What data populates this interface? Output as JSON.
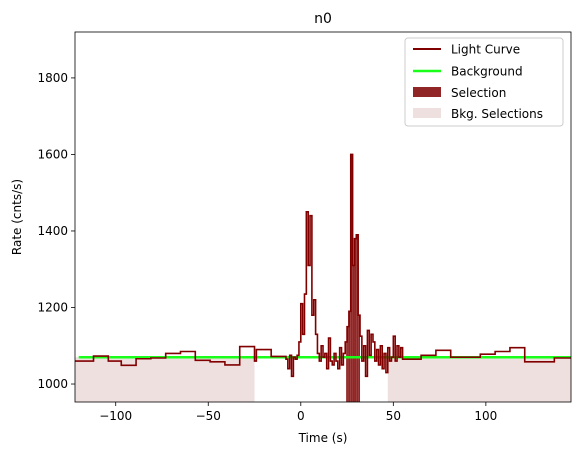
{
  "chart_data": {
    "type": "line",
    "title": "n0",
    "xlabel": "Time (s)",
    "ylabel": "Rate (cnts/s)",
    "xlim": [
      -122,
      146
    ],
    "ylim": [
      953,
      1920
    ],
    "xticks": [
      -100,
      -50,
      0,
      50,
      100
    ],
    "xtick_labels": [
      "−100",
      "−50",
      "0",
      "50",
      "100"
    ],
    "yticks": [
      1000,
      1200,
      1400,
      1600,
      1800
    ],
    "ytick_labels": [
      "1000",
      "1200",
      "1400",
      "1600",
      "1800"
    ],
    "grid": false,
    "legend_position": "top-right",
    "legend": [
      "Light Curve",
      "Background",
      "Selection",
      "Bkg. Selections"
    ],
    "colors": {
      "light_curve": "#800000",
      "background": "#1aff1a",
      "selection": "#8b1a1a",
      "bkg_selection": "#efe0e0"
    },
    "background_level": [
      [
        -120,
        1070
      ],
      [
        146,
        1070
      ]
    ],
    "selection_range": [
      24.5,
      32
    ],
    "bkg_selection_ranges": [
      [
        -122,
        -25
      ],
      [
        47,
        146
      ]
    ],
    "light_curve": [
      [
        -122,
        1060
      ],
      [
        -112,
        1073
      ],
      [
        -104,
        1060
      ],
      [
        -97,
        1049
      ],
      [
        -89,
        1066
      ],
      [
        -81,
        1068
      ],
      [
        -73,
        1080
      ],
      [
        -65,
        1085
      ],
      [
        -57,
        1062
      ],
      [
        -49,
        1058
      ],
      [
        -41,
        1050
      ],
      [
        -33,
        1098
      ],
      [
        -25,
        1060
      ],
      [
        -24,
        1090
      ],
      [
        -16,
        1072
      ],
      [
        -8,
        1065
      ],
      [
        -7,
        1040
      ],
      [
        -6,
        1075
      ],
      [
        -5,
        1020
      ],
      [
        -4,
        1070
      ],
      [
        -3,
        1065
      ],
      [
        -2,
        1075
      ],
      [
        -1,
        1110
      ],
      [
        0,
        1210
      ],
      [
        1,
        1130
      ],
      [
        2,
        1235
      ],
      [
        3,
        1450
      ],
      [
        4,
        1310
      ],
      [
        5,
        1440
      ],
      [
        6,
        1180
      ],
      [
        7,
        1220
      ],
      [
        8,
        1130
      ],
      [
        9,
        1080
      ],
      [
        10,
        1060
      ],
      [
        11,
        1100
      ],
      [
        12,
        1070
      ],
      [
        13,
        1080
      ],
      [
        14,
        1040
      ],
      [
        15,
        1120
      ],
      [
        16,
        1060
      ],
      [
        17,
        1050
      ],
      [
        18,
        1080
      ],
      [
        19,
        1060
      ],
      [
        20,
        1040
      ],
      [
        21,
        1095
      ],
      [
        22,
        1050
      ],
      [
        23,
        1080
      ],
      [
        24,
        1110
      ],
      [
        25,
        1150
      ],
      [
        26,
        1190
      ],
      [
        27,
        1600
      ],
      [
        28,
        1310
      ],
      [
        29,
        1380
      ],
      [
        30,
        1390
      ],
      [
        31,
        1180
      ],
      [
        32,
        1125
      ],
      [
        33,
        1060
      ],
      [
        34,
        1100
      ],
      [
        35,
        1020
      ],
      [
        36,
        1140
      ],
      [
        37,
        1075
      ],
      [
        38,
        1130
      ],
      [
        39,
        1110
      ],
      [
        40,
        1060
      ],
      [
        41,
        1090
      ],
      [
        42,
        1050
      ],
      [
        43,
        1100
      ],
      [
        44,
        1040
      ],
      [
        45,
        1080
      ],
      [
        46,
        1030
      ],
      [
        47,
        1095
      ],
      [
        48,
        1060
      ],
      [
        49,
        1070
      ],
      [
        50,
        1125
      ],
      [
        51,
        1060
      ],
      [
        52,
        1100
      ],
      [
        53,
        1070
      ],
      [
        54,
        1095
      ],
      [
        55,
        1065
      ],
      [
        57,
        1065
      ],
      [
        65,
        1075
      ],
      [
        73,
        1088
      ],
      [
        81,
        1070
      ],
      [
        89,
        1070
      ],
      [
        97,
        1078
      ],
      [
        105,
        1085
      ],
      [
        113,
        1095
      ],
      [
        121,
        1058
      ],
      [
        129,
        1058
      ],
      [
        137,
        1068
      ],
      [
        146,
        1068
      ]
    ]
  }
}
